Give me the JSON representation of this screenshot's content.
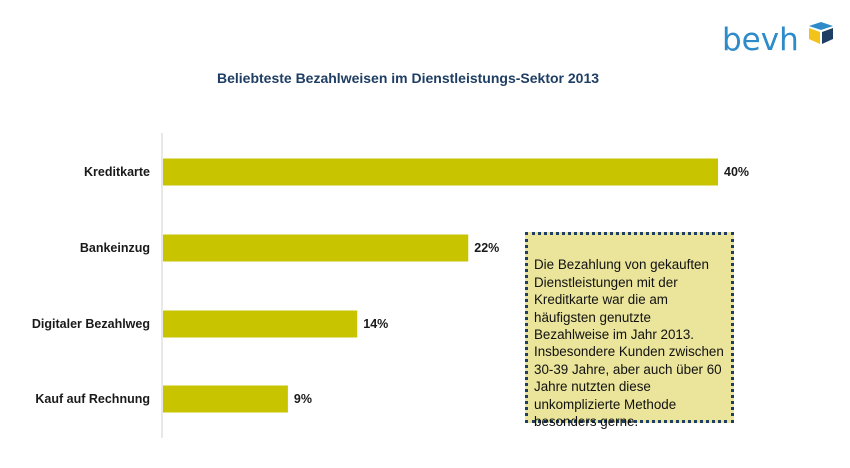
{
  "brand": {
    "logo_text": "bevh",
    "text_color": "#2e8bc9",
    "mark_colors": [
      "#2e8bc9",
      "#f2c318",
      "#1f3e63"
    ]
  },
  "chart_data": {
    "type": "bar",
    "orientation": "horizontal",
    "title": "Beliebteste Bezahlweisen im Dienstleistungs-Sektor 2013",
    "categories": [
      "Kreditkarte",
      "Bankeinzug",
      "Digitaler Bezahlweg",
      "Kauf auf Rechnung"
    ],
    "values": [
      40,
      22,
      14,
      9
    ],
    "value_labels": [
      "40%",
      "22%",
      "14%",
      "9%"
    ],
    "unit": "%",
    "xlim": [
      0,
      40
    ],
    "grid": false,
    "legend": "none",
    "bar_color": "#c8c400",
    "title_color": "#1f3e63",
    "axis_color": "#d0d0d0"
  },
  "callout": {
    "text": "Die Bezahlung von gekauften\nDienstleistungen mit der\nKreditkarte war die am\nhäufigsten genutzte\nBezahlweise im Jahr 2013.\nInsbesondere Kunden zwischen\n30-39 Jahre, aber auch über 60\nJahre nutzten diese\nunkomplizierte Methode\nbesonders gerne.",
    "background": "#eae59a",
    "border_color": "#1f3e63"
  }
}
